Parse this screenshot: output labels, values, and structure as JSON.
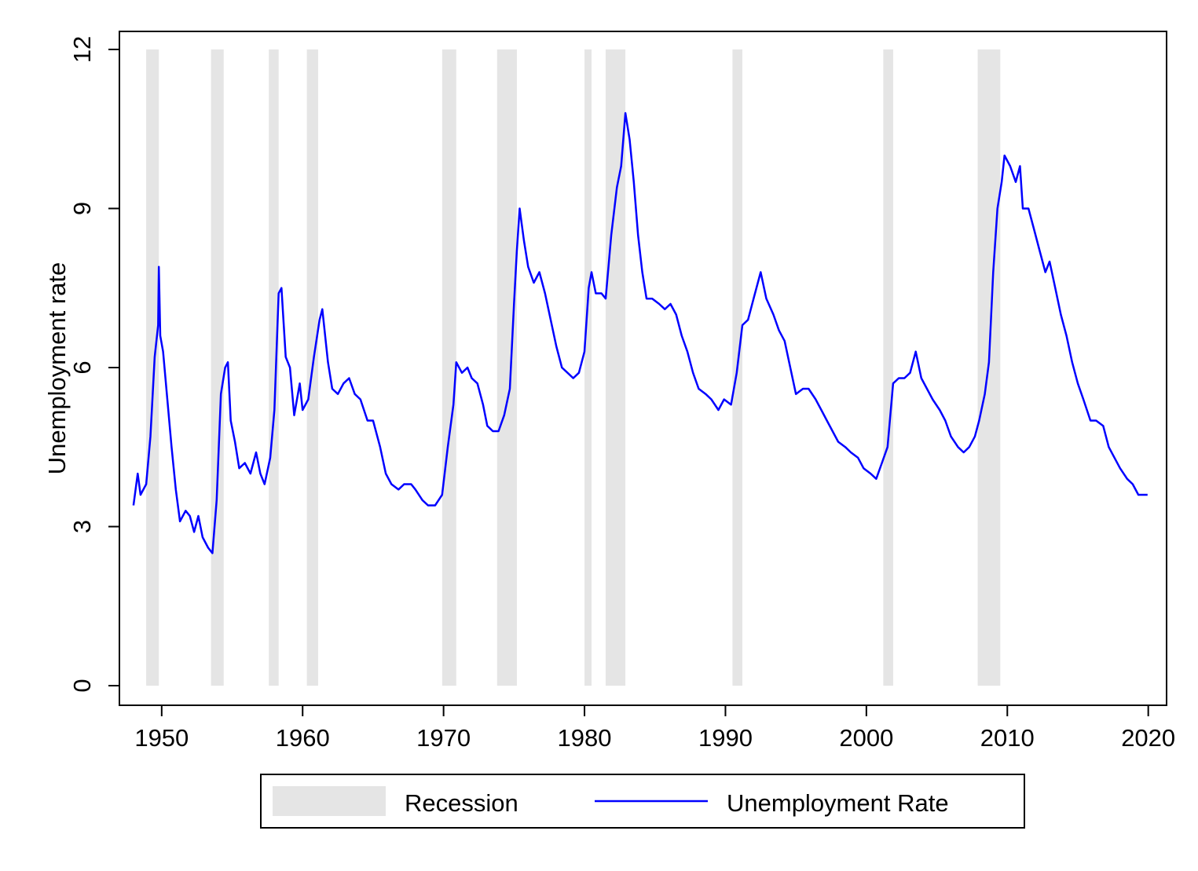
{
  "chart_data": {
    "type": "line",
    "y_label": "Unemployment rate",
    "xlim": [
      1947,
      2021.3
    ],
    "ylim": [
      -0.37,
      12.34
    ],
    "xticks": [
      1950,
      1960,
      1970,
      1980,
      1990,
      2000,
      2010,
      2020
    ],
    "yticks": [
      0,
      3,
      6,
      9,
      12
    ],
    "recessions": {
      "name": "Recession",
      "color": "#e5e5e5",
      "periods": [
        [
          1948.9,
          1949.8
        ],
        [
          1953.5,
          1954.4
        ],
        [
          1957.6,
          1958.3
        ],
        [
          1960.3,
          1961.1
        ],
        [
          1969.9,
          1970.9
        ],
        [
          1973.8,
          1975.2
        ],
        [
          1980.0,
          1980.5
        ],
        [
          1981.5,
          1982.9
        ],
        [
          1990.5,
          1991.2
        ],
        [
          2001.2,
          2001.9
        ],
        [
          2007.9,
          2009.5
        ]
      ]
    },
    "x": [
      1948.0,
      1948.3,
      1948.5,
      1948.9,
      1949.2,
      1949.5,
      1949.75,
      1949.8,
      1949.9,
      1950.1,
      1950.4,
      1950.7,
      1951.0,
      1951.3,
      1951.7,
      1952.0,
      1952.3,
      1952.6,
      1952.9,
      1953.3,
      1953.6,
      1953.9,
      1954.2,
      1954.5,
      1954.7,
      1954.9,
      1955.2,
      1955.5,
      1955.9,
      1956.3,
      1956.7,
      1957.0,
      1957.3,
      1957.7,
      1958.0,
      1958.3,
      1958.5,
      1958.8,
      1959.1,
      1959.4,
      1959.8,
      1960.0,
      1960.4,
      1960.8,
      1961.2,
      1961.4,
      1961.8,
      1962.1,
      1962.5,
      1962.9,
      1963.3,
      1963.7,
      1964.1,
      1964.6,
      1965.0,
      1965.5,
      1965.9,
      1966.3,
      1966.8,
      1967.2,
      1967.7,
      1968.0,
      1968.5,
      1968.9,
      1969.4,
      1969.9,
      1970.3,
      1970.7,
      1970.9,
      1971.3,
      1971.7,
      1972.0,
      1972.4,
      1972.8,
      1973.1,
      1973.5,
      1973.9,
      1974.3,
      1974.7,
      1975.0,
      1975.2,
      1975.4,
      1975.7,
      1976.0,
      1976.4,
      1976.8,
      1977.2,
      1977.6,
      1978.0,
      1978.4,
      1978.8,
      1979.2,
      1979.6,
      1980.0,
      1980.3,
      1980.5,
      1980.8,
      1981.2,
      1981.5,
      1981.9,
      1982.3,
      1982.6,
      1982.9,
      1983.2,
      1983.5,
      1983.8,
      1984.1,
      1984.4,
      1984.8,
      1985.3,
      1985.7,
      1986.1,
      1986.5,
      1986.9,
      1987.3,
      1987.7,
      1988.1,
      1988.6,
      1989.0,
      1989.5,
      1989.9,
      1990.4,
      1990.8,
      1991.2,
      1991.6,
      1992.0,
      1992.5,
      1992.9,
      1993.4,
      1993.8,
      1994.2,
      1994.6,
      1995.0,
      1995.5,
      1995.9,
      1996.4,
      1996.8,
      1997.2,
      1997.6,
      1998.0,
      1998.5,
      1998.9,
      1999.4,
      1999.8,
      2000.3,
      2000.7,
      2001.1,
      2001.5,
      2001.9,
      2002.3,
      2002.7,
      2003.1,
      2003.5,
      2003.9,
      2004.3,
      2004.7,
      2005.2,
      2005.6,
      2006.0,
      2006.5,
      2006.9,
      2007.3,
      2007.7,
      2008.0,
      2008.4,
      2008.7,
      2009.0,
      2009.3,
      2009.6,
      2009.8,
      2010.2,
      2010.6,
      2010.9,
      2011.1,
      2011.5,
      2011.9,
      2012.3,
      2012.7,
      2013.0,
      2013.4,
      2013.8,
      2014.2,
      2014.6,
      2015.0,
      2015.4,
      2015.9,
      2016.3,
      2016.8,
      2017.2,
      2017.6,
      2018.0,
      2018.5,
      2018.9,
      2019.3,
      2019.7,
      2019.95
    ],
    "series": [
      {
        "name": "Unemployment Rate",
        "color": "#0000ff",
        "values": [
          3.4,
          4.0,
          3.6,
          3.8,
          4.7,
          6.2,
          6.8,
          7.9,
          6.6,
          6.3,
          5.4,
          4.5,
          3.7,
          3.1,
          3.3,
          3.2,
          2.9,
          3.2,
          2.8,
          2.6,
          2.5,
          3.5,
          5.5,
          6.0,
          6.1,
          5.0,
          4.6,
          4.1,
          4.2,
          4.0,
          4.4,
          4.0,
          3.8,
          4.3,
          5.2,
          7.4,
          7.5,
          6.2,
          6.0,
          5.1,
          5.7,
          5.2,
          5.4,
          6.2,
          6.9,
          7.1,
          6.1,
          5.6,
          5.5,
          5.7,
          5.8,
          5.5,
          5.4,
          5.0,
          5.0,
          4.5,
          4.0,
          3.8,
          3.7,
          3.8,
          3.8,
          3.7,
          3.5,
          3.4,
          3.4,
          3.6,
          4.5,
          5.3,
          6.1,
          5.9,
          6.0,
          5.8,
          5.7,
          5.3,
          4.9,
          4.8,
          4.8,
          5.1,
          5.6,
          7.2,
          8.2,
          9.0,
          8.4,
          7.9,
          7.6,
          7.8,
          7.4,
          6.9,
          6.4,
          6.0,
          5.9,
          5.8,
          5.9,
          6.3,
          7.5,
          7.8,
          7.4,
          7.4,
          7.3,
          8.5,
          9.4,
          9.8,
          10.8,
          10.3,
          9.5,
          8.5,
          7.8,
          7.3,
          7.3,
          7.2,
          7.1,
          7.2,
          7.0,
          6.6,
          6.3,
          5.9,
          5.6,
          5.5,
          5.4,
          5.2,
          5.4,
          5.3,
          5.9,
          6.8,
          6.9,
          7.3,
          7.8,
          7.3,
          7.0,
          6.7,
          6.5,
          6.0,
          5.5,
          5.6,
          5.6,
          5.4,
          5.2,
          5.0,
          4.8,
          4.6,
          4.5,
          4.4,
          4.3,
          4.1,
          4.0,
          3.9,
          4.2,
          4.5,
          5.7,
          5.8,
          5.8,
          5.9,
          6.3,
          5.8,
          5.6,
          5.4,
          5.2,
          5.0,
          4.7,
          4.5,
          4.4,
          4.5,
          4.7,
          5.0,
          5.5,
          6.1,
          7.8,
          9.0,
          9.5,
          10.0,
          9.8,
          9.5,
          9.8,
          9.0,
          9.0,
          8.6,
          8.2,
          7.8,
          8.0,
          7.5,
          7.0,
          6.6,
          6.1,
          5.7,
          5.4,
          5.0,
          5.0,
          4.9,
          4.5,
          4.3,
          4.1,
          3.9,
          3.8,
          3.6,
          3.6,
          3.6
        ]
      }
    ]
  }
}
